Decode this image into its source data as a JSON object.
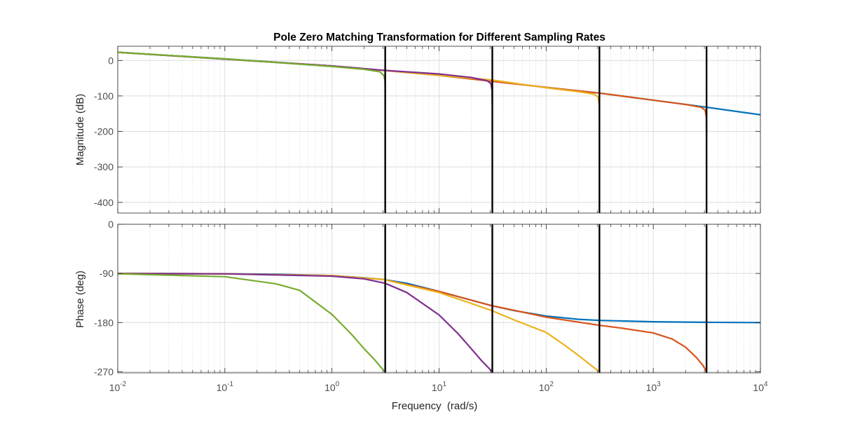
{
  "chart_data": {
    "type": "line",
    "title": "Pole Zero Matching Transformation for Different Sampling Rates",
    "xlabel": "Frequency  (rad/s)",
    "xscale": "log",
    "xlim": [
      0.01,
      10000
    ],
    "x_tick_labels": [
      {
        "base": "10",
        "exp": "-2"
      },
      {
        "base": "10",
        "exp": "-1"
      },
      {
        "base": "10",
        "exp": "0"
      },
      {
        "base": "10",
        "exp": "1"
      },
      {
        "base": "10",
        "exp": "2"
      },
      {
        "base": "10",
        "exp": "3"
      },
      {
        "base": "10",
        "exp": "4"
      }
    ],
    "grid": true,
    "nyquist_lines": [
      3.1416,
      31.416,
      314.16,
      3141.6
    ],
    "colors": {
      "continuous": "#0072BD",
      "ts_1e-3": "#D95319",
      "ts_1e-2": "#EDB120",
      "ts_1e-1": "#7E2F8E",
      "ts_1": "#77AC30",
      "nyquist": "#000000",
      "axis_text": "#4d4d4d"
    },
    "magnitude": {
      "ylabel": "Magnitude (dB)",
      "ylim": [
        -430,
        40
      ],
      "yticks": [
        0,
        -100,
        -200,
        -300,
        -400
      ],
      "ytick_labels": [
        "0",
        "-100",
        "-200",
        "-300",
        "-400"
      ]
    },
    "phase": {
      "ylabel": "Phase (deg)",
      "ylim": [
        -272,
        0
      ],
      "yticks": [
        0,
        -90,
        -180,
        -270
      ],
      "ytick_labels": [
        "0",
        "-90",
        "-180",
        "-270"
      ]
    },
    "series": [
      {
        "id": "continuous",
        "magnitude": {
          "x": [
            0.01,
            0.1,
            1,
            3,
            10,
            31,
            100,
            314,
            1000,
            3000,
            10000
          ],
          "y": [
            23,
            4.5,
            -15.4,
            -28,
            -42,
            -57,
            -76,
            -92,
            -112,
            -131,
            -153
          ]
        },
        "phase": {
          "x": [
            0.01,
            0.1,
            0.3,
            1,
            2,
            3,
            5,
            10,
            20,
            31,
            50,
            100,
            200,
            314,
            1000,
            3000,
            10000
          ],
          "y": [
            -90.2,
            -90.7,
            -91.5,
            -94,
            -98,
            -101,
            -108,
            -123,
            -139,
            -149,
            -158,
            -168,
            -174,
            -176,
            -178.5,
            -179.5,
            -180
          ]
        }
      },
      {
        "id": "ts_1e-3",
        "magnitude": {
          "x": [
            0.01,
            1,
            10,
            100,
            314,
            1000,
            2000,
            2800,
            3050,
            3130,
            3141
          ],
          "y": [
            23,
            -15.4,
            -42,
            -76,
            -92,
            -112,
            -124,
            -132,
            -140,
            -160,
            -210
          ]
        },
        "phase": {
          "x": [
            0.01,
            0.1,
            1,
            3,
            10,
            31,
            100,
            314,
            500,
            1000,
            1500,
            2000,
            2500,
            2900,
            3141
          ],
          "y": [
            -90.2,
            -90.7,
            -94,
            -101,
            -123,
            -149,
            -170,
            -185,
            -190,
            -199,
            -210,
            -225,
            -243,
            -258,
            -270
          ]
        }
      },
      {
        "id": "ts_1e-2",
        "magnitude": {
          "x": [
            0.01,
            1,
            10,
            31,
            100,
            200,
            280,
            305,
            313,
            314
          ],
          "y": [
            23,
            -15.4,
            -42,
            -55,
            -77,
            -88,
            -95,
            -103,
            -125,
            -170
          ]
        },
        "phase": {
          "x": [
            0.01,
            0.1,
            1,
            3,
            10,
            20,
            31,
            50,
            100,
            150,
            200,
            250,
            290,
            314
          ],
          "y": [
            -90.2,
            -90.7,
            -94,
            -101,
            -125,
            -145,
            -158,
            -175,
            -198,
            -222,
            -240,
            -255,
            -265,
            -270
          ]
        }
      },
      {
        "id": "ts_1e-1",
        "magnitude": {
          "x": [
            0.01,
            1,
            3.14,
            10,
            20,
            28,
            30.5,
            31.3,
            31.4
          ],
          "y": [
            23,
            -15.4,
            -28,
            -38,
            -48,
            -57,
            -65,
            -85,
            -125
          ]
        },
        "phase": {
          "x": [
            0.01,
            0.1,
            1,
            2,
            3.14,
            5,
            10,
            15,
            20,
            25,
            29,
            31.4
          ],
          "y": [
            -90.2,
            -90.7,
            -95,
            -100,
            -108,
            -125,
            -166,
            -200,
            -228,
            -250,
            -263,
            -270
          ]
        }
      },
      {
        "id": "ts_1",
        "magnitude": {
          "x": [
            0.01,
            0.1,
            1,
            2,
            2.8,
            3.05,
            3.13,
            3.14
          ],
          "y": [
            23,
            4.5,
            -17,
            -25,
            -32,
            -42,
            -58,
            -88
          ]
        },
        "phase": {
          "x": [
            0.01,
            0.1,
            0.3,
            0.5,
            1,
            1.5,
            2,
            2.5,
            2.9,
            3.14
          ],
          "y": [
            -90.6,
            -96,
            -109,
            -121,
            -165,
            -200,
            -228,
            -248,
            -263,
            -270
          ]
        }
      }
    ]
  }
}
